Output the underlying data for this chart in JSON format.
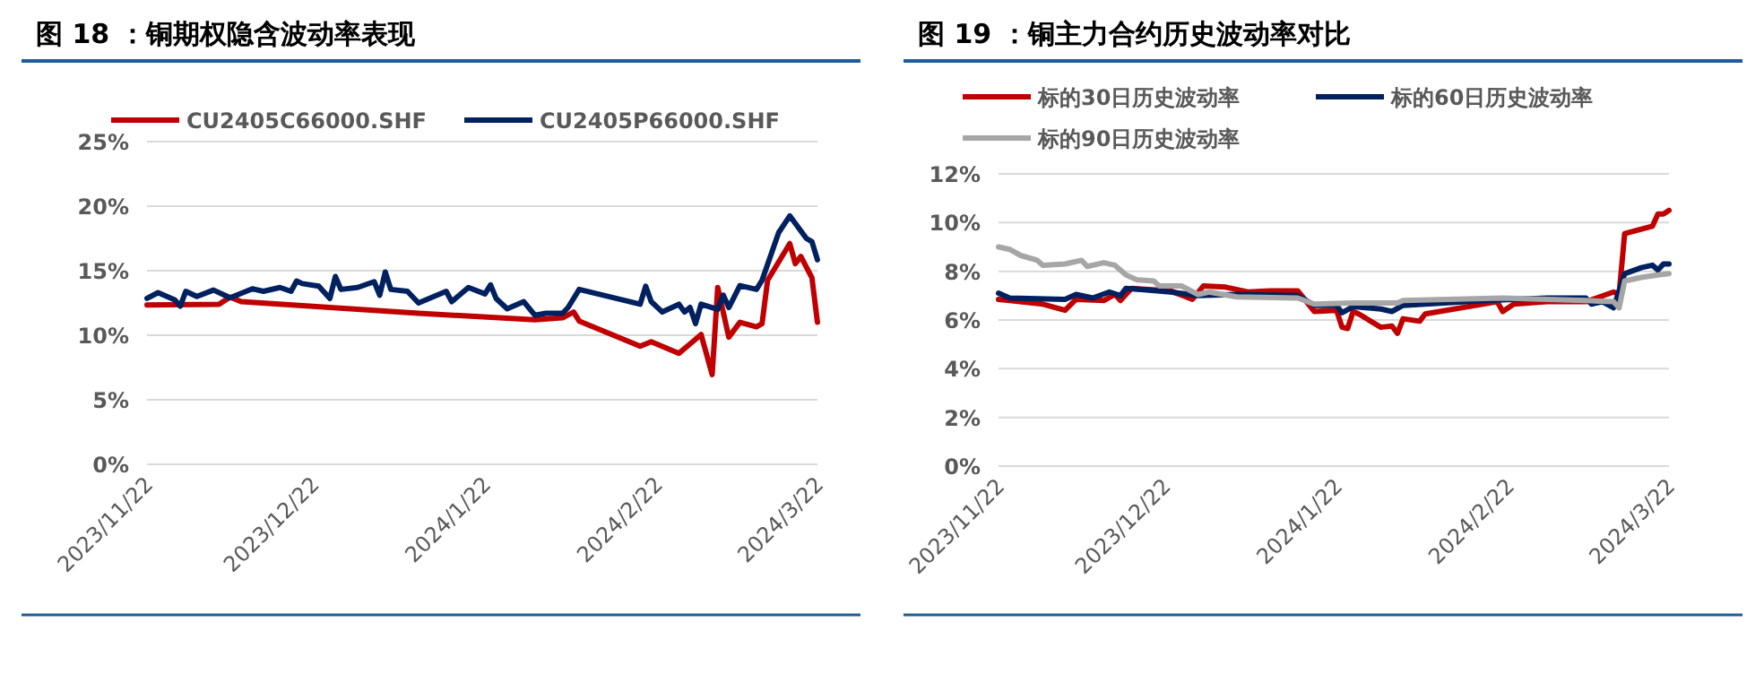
{
  "chart_data": [
    {
      "type": "line",
      "title": "图 18 ：铜期权隐含波动率表现",
      "legend": "top",
      "grid": "y",
      "line_style": "solid",
      "xlim": [
        "2023-11-22",
        "2024-03-22"
      ],
      "xticks": [
        {
          "value": "2023-11-22",
          "label": "2023/11/22"
        },
        {
          "value": "2023-12-22",
          "label": "2023/12/22"
        },
        {
          "value": "2024-01-22",
          "label": "2024/1/22"
        },
        {
          "value": "2024-02-22",
          "label": "2024/2/22"
        },
        {
          "value": "2024-03-22",
          "label": "2024/3/22"
        }
      ],
      "ylim": [
        0,
        25
      ],
      "yticks": [
        {
          "value": 0,
          "label": "0%"
        },
        {
          "value": 5,
          "label": "5%"
        },
        {
          "value": 10,
          "label": "10%"
        },
        {
          "value": 15,
          "label": "15%"
        },
        {
          "value": 20,
          "label": "20%"
        },
        {
          "value": 25,
          "label": "25%"
        }
      ],
      "series": [
        {
          "name": "CU2405C66000.SHF",
          "color": "#c00000",
          "x": [
            "2023-11-22",
            "2023-12-05",
            "2023-12-07",
            "2023-12-09",
            "2024-01-10",
            "2024-01-31",
            "2024-02-05",
            "2024-02-07",
            "2024-02-08",
            "2024-02-19",
            "2024-02-21",
            "2024-02-26",
            "2024-03-01",
            "2024-03-03",
            "2024-03-04",
            "2024-03-06",
            "2024-03-08",
            "2024-03-11",
            "2024-03-12",
            "2024-03-13",
            "2024-03-17",
            "2024-03-18",
            "2024-03-19",
            "2024-03-21",
            "2024-03-22"
          ],
          "values": [
            12.35,
            12.4,
            12.95,
            12.6,
            11.7,
            11.2,
            11.35,
            11.8,
            11.1,
            9.15,
            9.5,
            8.6,
            10.05,
            6.95,
            13.7,
            9.85,
            11.0,
            10.65,
            10.9,
            14.25,
            17.1,
            15.55,
            16.1,
            14.45,
            11.0
          ]
        },
        {
          "name": "CU2405P66000.SHF",
          "color": "#002060",
          "x": [
            "2023-11-22",
            "2023-11-24",
            "2023-11-27",
            "2023-11-28",
            "2023-11-29",
            "2023-12-01",
            "2023-12-04",
            "2023-12-07",
            "2023-12-11",
            "2023-12-13",
            "2023-12-16",
            "2023-12-18",
            "2023-12-19",
            "2023-12-20",
            "2023-12-23",
            "2023-12-25",
            "2023-12-26",
            "2023-12-27",
            "2023-12-30",
            "2024-01-02",
            "2024-01-03",
            "2024-01-04",
            "2024-01-05",
            "2024-01-08",
            "2024-01-10",
            "2024-01-15",
            "2024-01-16",
            "2024-01-19",
            "2024-01-22",
            "2024-01-23",
            "2024-01-24",
            "2024-01-26",
            "2024-01-29",
            "2024-01-31",
            "2024-02-02",
            "2024-02-05",
            "2024-02-06",
            "2024-02-08",
            "2024-02-19",
            "2024-02-20",
            "2024-02-21",
            "2024-02-23",
            "2024-02-26",
            "2024-02-27",
            "2024-02-28",
            "2024-02-29",
            "2024-03-01",
            "2024-03-04",
            "2024-03-05",
            "2024-03-06",
            "2024-03-08",
            "2024-03-11",
            "2024-03-12",
            "2024-03-15",
            "2024-03-17",
            "2024-03-20",
            "2024-03-21",
            "2024-03-22"
          ],
          "values": [
            12.85,
            13.3,
            12.75,
            12.25,
            13.4,
            13.0,
            13.5,
            12.9,
            13.6,
            13.4,
            13.7,
            13.4,
            14.2,
            14.0,
            13.8,
            12.85,
            14.55,
            13.55,
            13.7,
            14.15,
            13.1,
            14.9,
            13.55,
            13.4,
            12.5,
            13.4,
            12.6,
            13.7,
            13.2,
            13.9,
            12.85,
            12.05,
            12.6,
            11.55,
            11.7,
            11.7,
            12.15,
            13.55,
            12.4,
            13.8,
            12.6,
            11.8,
            12.4,
            11.8,
            12.15,
            10.9,
            12.4,
            12.0,
            13.1,
            12.15,
            13.85,
            13.55,
            14.25,
            17.95,
            19.25,
            17.5,
            17.25,
            15.85
          ]
        }
      ]
    },
    {
      "type": "line",
      "title": "图 19 ：铜主力合约历史波动率对比",
      "legend": "top",
      "grid": "y",
      "line_style": "solid",
      "xlim": [
        "2023-11-22",
        "2024-03-22"
      ],
      "xticks": [
        {
          "value": "2023-11-22",
          "label": "2023/11/22"
        },
        {
          "value": "2023-12-22",
          "label": "2023/12/22"
        },
        {
          "value": "2024-01-22",
          "label": "2024/1/22"
        },
        {
          "value": "2024-02-22",
          "label": "2024/2/22"
        },
        {
          "value": "2024-03-22",
          "label": "2024/3/22"
        }
      ],
      "ylim": [
        0,
        12
      ],
      "yticks": [
        {
          "value": 0,
          "label": "0%"
        },
        {
          "value": 2,
          "label": "2%"
        },
        {
          "value": 4,
          "label": "4%"
        },
        {
          "value": 6,
          "label": "6%"
        },
        {
          "value": 8,
          "label": "8%"
        },
        {
          "value": 10,
          "label": "10%"
        },
        {
          "value": 12,
          "label": "12%"
        }
      ],
      "series": [
        {
          "name": "标的30日历史波动率",
          "color": "#c00000",
          "x": [
            "2023-11-22",
            "2023-11-24",
            "2023-11-30",
            "2023-12-04",
            "2023-12-06",
            "2023-12-11",
            "2023-12-13",
            "2023-12-14",
            "2023-12-16",
            "2023-12-23",
            "2023-12-27",
            "2023-12-29",
            "2024-01-02",
            "2024-01-06",
            "2024-01-10",
            "2024-01-15",
            "2024-01-18",
            "2024-01-22",
            "2024-01-23",
            "2024-01-24",
            "2024-01-25",
            "2024-01-26",
            "2024-01-30",
            "2024-02-01",
            "2024-02-02",
            "2024-02-03",
            "2024-02-06",
            "2024-02-07",
            "2024-02-20",
            "2024-02-21",
            "2024-02-23",
            "2024-02-29",
            "2024-03-07",
            "2024-03-12",
            "2024-03-13",
            "2024-03-14",
            "2024-03-19",
            "2024-03-20",
            "2024-03-21",
            "2024-03-22"
          ],
          "values": [
            6.85,
            6.8,
            6.65,
            6.4,
            6.85,
            6.8,
            7.05,
            6.8,
            7.3,
            7.2,
            6.85,
            7.4,
            7.35,
            7.15,
            7.2,
            7.2,
            6.35,
            6.4,
            5.7,
            5.65,
            6.35,
            6.25,
            5.7,
            5.75,
            5.45,
            6.05,
            5.95,
            6.25,
            6.75,
            6.35,
            6.65,
            6.75,
            6.75,
            7.15,
            7.05,
            9.55,
            9.85,
            10.35,
            10.35,
            10.5
          ]
        },
        {
          "name": "标的60日历史波动率",
          "color": "#002060",
          "x": [
            "2023-11-22",
            "2023-11-24",
            "2023-12-04",
            "2023-12-06",
            "2023-12-09",
            "2023-12-12",
            "2023-12-14",
            "2023-12-15",
            "2023-12-23",
            "2023-12-28",
            "2024-01-04",
            "2024-01-15",
            "2024-01-18",
            "2024-01-22",
            "2024-01-23",
            "2024-01-25",
            "2024-01-30",
            "2024-02-01",
            "2024-02-03",
            "2024-02-07",
            "2024-02-18",
            "2024-02-29",
            "2024-03-07",
            "2024-03-08",
            "2024-03-10",
            "2024-03-12",
            "2024-03-14",
            "2024-03-17",
            "2024-03-19",
            "2024-03-20",
            "2024-03-21",
            "2024-03-22"
          ],
          "values": [
            7.1,
            6.9,
            6.85,
            7.05,
            6.9,
            7.15,
            7.0,
            7.3,
            7.15,
            7.0,
            7.05,
            7.0,
            6.6,
            6.6,
            6.3,
            6.55,
            6.45,
            6.35,
            6.6,
            6.65,
            6.8,
            6.9,
            6.9,
            6.65,
            6.75,
            6.5,
            7.9,
            8.15,
            8.25,
            8.05,
            8.3,
            8.3
          ]
        },
        {
          "name": "标的90日历史波动率",
          "color": "#a6a6a6",
          "x": [
            "2023-11-22",
            "2023-11-24",
            "2023-11-26",
            "2023-11-29",
            "2023-11-30",
            "2023-12-04",
            "2023-12-07",
            "2023-12-08",
            "2023-12-11",
            "2023-12-13",
            "2023-12-15",
            "2023-12-17",
            "2023-12-20",
            "2023-12-21",
            "2023-12-25",
            "2023-12-28",
            "2023-12-30",
            "2024-01-04",
            "2024-01-15",
            "2024-01-18",
            "2024-01-25",
            "2024-02-02",
            "2024-02-03",
            "2024-02-21",
            "2024-03-07",
            "2024-03-12",
            "2024-03-13",
            "2024-03-14",
            "2024-03-17",
            "2024-03-20",
            "2024-03-22"
          ],
          "values": [
            9.0,
            8.9,
            8.65,
            8.45,
            8.25,
            8.3,
            8.45,
            8.2,
            8.35,
            8.25,
            7.85,
            7.65,
            7.6,
            7.4,
            7.4,
            7.05,
            7.15,
            6.95,
            6.9,
            6.65,
            6.7,
            6.7,
            6.8,
            6.9,
            6.8,
            6.75,
            6.5,
            7.6,
            7.75,
            7.85,
            7.9
          ]
        }
      ]
    }
  ]
}
